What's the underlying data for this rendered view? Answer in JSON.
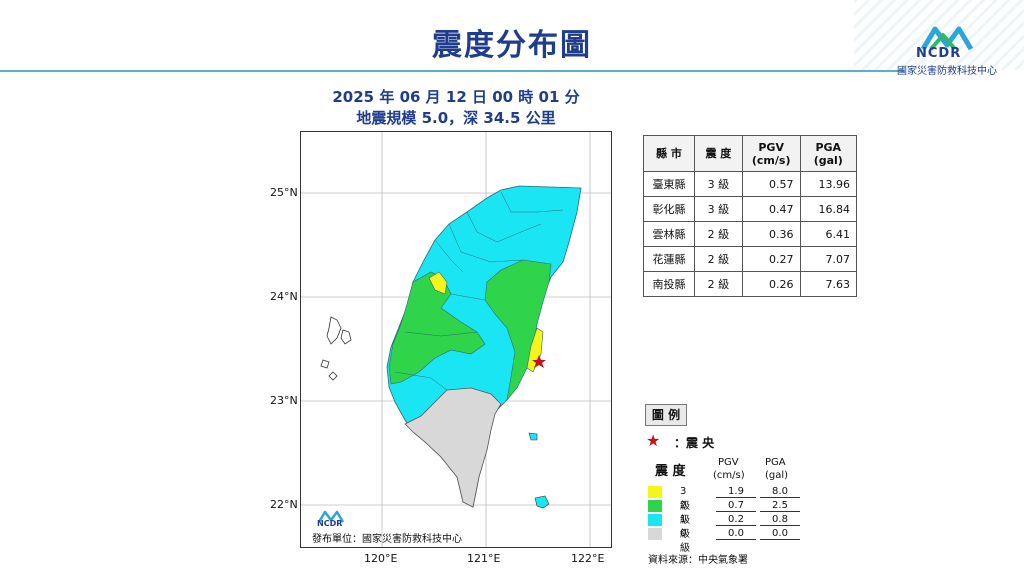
{
  "header": {
    "title": "震度分布圖",
    "logo_text": "NCDR",
    "org_name": "國家災害防救科技中心"
  },
  "event": {
    "datetime": "2025 年 06 月 12 日 00 時 01 分",
    "magnitude_depth": "地震規模 5.0，深 34.5 公里"
  },
  "map": {
    "lat_labels": [
      "25°N",
      "24°N",
      "23°N",
      "22°N"
    ],
    "lon_labels": [
      "120°E",
      "121°E",
      "122°E"
    ],
    "publisher": "發布單位：國家災害防救科技中心",
    "logo_text": "NCDR",
    "colors": {
      "level3": "#f5f51a",
      "level2": "#2fd44a",
      "level1": "#19e6f2",
      "level0": "#d8d8d8",
      "epicenter": "#c4101a"
    }
  },
  "table": {
    "headers": [
      "縣 市",
      "震 度",
      "PGV\n(cm/s)",
      "PGA\n(gal)"
    ],
    "rows": [
      [
        "臺東縣",
        "3 級",
        "0.57",
        "13.96"
      ],
      [
        "彰化縣",
        "3 級",
        "0.47",
        "16.84"
      ],
      [
        "雲林縣",
        "2 級",
        "0.36",
        "6.41"
      ],
      [
        "花蓮縣",
        "2 級",
        "0.27",
        "7.07"
      ],
      [
        "南投縣",
        "2 級",
        "0.26",
        "7.63"
      ]
    ]
  },
  "legend": {
    "title": "圖 例",
    "epicenter_label": "：震 央",
    "col_intensity": "震 度",
    "col_pgv": "PGV",
    "col_pgv_unit": "(cm/s)",
    "col_pga": "PGA",
    "col_pga_unit": "(gal)",
    "levels": [
      {
        "label": "3 級",
        "pgv": "1.9",
        "pga": "8.0",
        "color": "#f5f51a"
      },
      {
        "label": "2 級",
        "pgv": "0.7",
        "pga": "2.5",
        "color": "#2fd44a"
      },
      {
        "label": "1 級",
        "pgv": "0.2",
        "pga": "0.8",
        "color": "#19e6f2"
      },
      {
        "label": "0 級",
        "pgv": "0.0",
        "pga": "0.0",
        "color": "#d8d8d8"
      }
    ],
    "source": "資料來源：中央氣象署"
  }
}
